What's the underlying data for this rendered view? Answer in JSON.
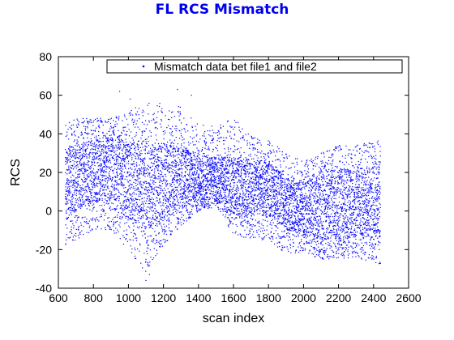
{
  "chart_data": {
    "type": "scatter",
    "title": "FL RCS Mismatch",
    "title_color": "#0000ee",
    "xlabel": "scan index",
    "ylabel": "RCS",
    "xlim": [
      600,
      2600
    ],
    "ylim": [
      -40,
      80
    ],
    "xticks": [
      "600",
      "800",
      "1000",
      "1200",
      "1400",
      "1600",
      "1800",
      "2000",
      "2200",
      "2400",
      "2600"
    ],
    "yticks": [
      "-40",
      "-20",
      "0",
      "20",
      "40",
      "60",
      "80"
    ],
    "grid": false,
    "legend_position": "top",
    "marker_color": "#0000ff",
    "series": [
      {
        "name": "Mismatch data bet file1 and file2",
        "x_range": [
          640,
          2440
        ],
        "envelope": [
          {
            "x": 640,
            "low": -20,
            "band_low": -5,
            "band_high": 32,
            "high": 46
          },
          {
            "x": 700,
            "low": -15,
            "band_low": 0,
            "band_high": 35,
            "high": 48
          },
          {
            "x": 800,
            "low": -10,
            "band_low": 5,
            "band_high": 38,
            "high": 49
          },
          {
            "x": 900,
            "low": -10,
            "band_low": 5,
            "band_high": 38,
            "high": 48
          },
          {
            "x": 1000,
            "low": -22,
            "band_low": -5,
            "band_high": 36,
            "high": 52
          },
          {
            "x": 1100,
            "low": -32,
            "band_low": -10,
            "band_high": 35,
            "high": 56
          },
          {
            "x": 1200,
            "low": -18,
            "band_low": -5,
            "band_high": 35,
            "high": 57
          },
          {
            "x": 1300,
            "low": -8,
            "band_low": 2,
            "band_high": 33,
            "high": 54
          },
          {
            "x": 1400,
            "low": 0,
            "band_low": 5,
            "band_high": 30,
            "high": 45
          },
          {
            "x": 1500,
            "low": 2,
            "band_low": 6,
            "band_high": 28,
            "high": 44
          },
          {
            "x": 1600,
            "low": -12,
            "band_low": -2,
            "band_high": 28,
            "high": 48
          },
          {
            "x": 1700,
            "low": -15,
            "band_low": -3,
            "band_high": 27,
            "high": 40
          },
          {
            "x": 1800,
            "low": -15,
            "band_low": -2,
            "band_high": 26,
            "high": 37
          },
          {
            "x": 1900,
            "low": -22,
            "band_low": -10,
            "band_high": 18,
            "high": 30
          },
          {
            "x": 2000,
            "low": -22,
            "band_low": -12,
            "band_high": 14,
            "high": 26
          },
          {
            "x": 2100,
            "low": -25,
            "band_low": -15,
            "band_high": 20,
            "high": 30
          },
          {
            "x": 2200,
            "low": -25,
            "band_low": -15,
            "band_high": 22,
            "high": 34
          },
          {
            "x": 2300,
            "low": -24,
            "band_low": -14,
            "band_high": 22,
            "high": 34
          },
          {
            "x": 2440,
            "low": -28,
            "band_low": -15,
            "band_high": 24,
            "high": 37
          }
        ],
        "outliers": [
          {
            "x": 950,
            "y": 62
          },
          {
            "x": 1010,
            "y": 58
          },
          {
            "x": 1100,
            "y": -36
          },
          {
            "x": 1120,
            "y": -33
          },
          {
            "x": 1280,
            "y": 63
          },
          {
            "x": 1360,
            "y": 60
          }
        ]
      }
    ]
  }
}
